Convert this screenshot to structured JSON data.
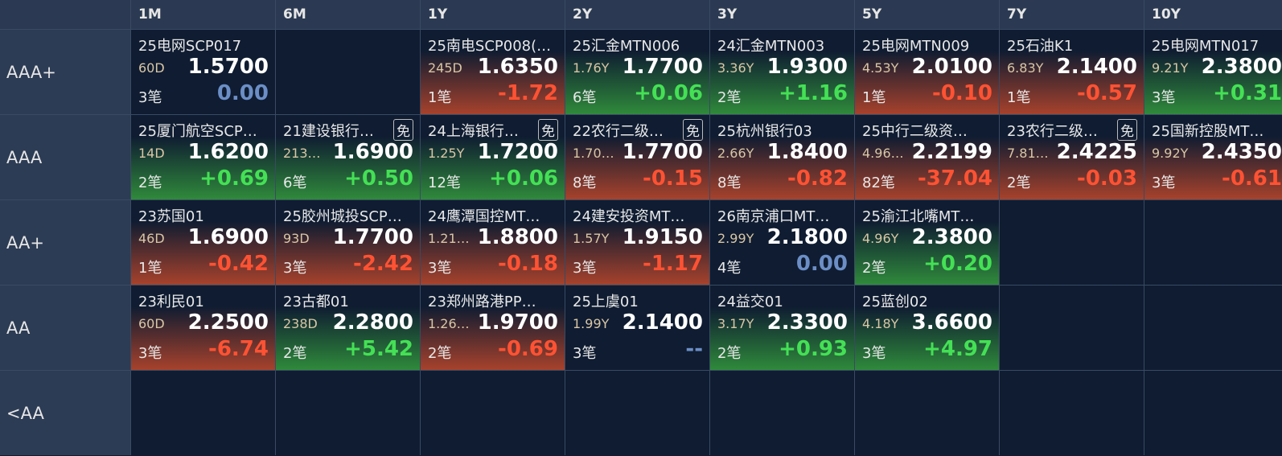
{
  "header": {
    "columns": [
      "1M",
      "6M",
      "1Y",
      "2Y",
      "3Y",
      "5Y",
      "7Y",
      "10Y"
    ]
  },
  "rows": [
    {
      "label": "AAA+",
      "cells": [
        {
          "name": "25电网SCP017",
          "term": "60D",
          "yield": "1.5700",
          "count": "3笔",
          "change": "0.00"
        },
        null,
        {
          "name": "25南电SCP008(…",
          "term": "245D",
          "yield": "1.6350",
          "count": "1笔",
          "change": "-1.72"
        },
        {
          "name": "25汇金MTN006",
          "term": "1.76Y",
          "yield": "1.7700",
          "count": "6笔",
          "change": "+0.06"
        },
        {
          "name": "24汇金MTN003",
          "term": "3.36Y",
          "yield": "1.9300",
          "count": "2笔",
          "change": "+1.16"
        },
        {
          "name": "25电网MTN009",
          "term": "4.53Y",
          "yield": "2.0100",
          "count": "1笔",
          "change": "-0.10"
        },
        {
          "name": "25石油K1",
          "term": "6.83Y",
          "yield": "2.1400",
          "count": "1笔",
          "change": "-0.57"
        },
        {
          "name": "25电网MTN017",
          "term": "9.21Y",
          "yield": "2.3800",
          "count": "3笔",
          "change": "+0.31"
        }
      ]
    },
    {
      "label": "AAA",
      "cells": [
        {
          "name": "25厦门航空SCP…",
          "term": "14D",
          "yield": "1.6200",
          "count": "2笔",
          "change": "+0.69"
        },
        {
          "name": "21建设银行…",
          "badge": "免",
          "term": "213…",
          "yield": "1.6900",
          "count": "6笔",
          "change": "+0.50"
        },
        {
          "name": "24上海银行…",
          "badge": "免",
          "term": "1.25Y",
          "yield": "1.7200",
          "count": "12笔",
          "change": "+0.06"
        },
        {
          "name": "22农行二级…",
          "badge": "免",
          "term": "1.70…",
          "yield": "1.7700",
          "count": "8笔",
          "change": "-0.15"
        },
        {
          "name": "25杭州银行03",
          "term": "2.66Y",
          "yield": "1.8400",
          "count": "8笔",
          "change": "-0.82"
        },
        {
          "name": "25中行二级资…",
          "term": "4.96…",
          "yield": "2.2199",
          "count": "82笔",
          "change": "-37.04"
        },
        {
          "name": "23农行二级…",
          "badge": "免",
          "term": "7.81…",
          "yield": "2.4225",
          "count": "2笔",
          "change": "-0.03"
        },
        {
          "name": "25国新控股MT…",
          "term": "9.92Y",
          "yield": "2.4350",
          "count": "3笔",
          "change": "-0.61"
        }
      ]
    },
    {
      "label": "AA+",
      "cells": [
        {
          "name": "23苏国01",
          "term": "46D",
          "yield": "1.6900",
          "count": "1笔",
          "change": "-0.42"
        },
        {
          "name": "25胶州城投SCP…",
          "term": "93D",
          "yield": "1.7700",
          "count": "3笔",
          "change": "-2.42"
        },
        {
          "name": "24鹰潭国控MT…",
          "term": "1.21…",
          "yield": "1.8800",
          "count": "3笔",
          "change": "-0.18"
        },
        {
          "name": "24建安投资MT…",
          "term": "1.57Y",
          "yield": "1.9150",
          "count": "3笔",
          "change": "-1.17"
        },
        {
          "name": "26南京浦口MT…",
          "term": "2.99Y",
          "yield": "2.1800",
          "count": "4笔",
          "change": "0.00"
        },
        {
          "name": "25渝江北嘴MT…",
          "term": "4.96Y",
          "yield": "2.3800",
          "count": "2笔",
          "change": "+0.20"
        },
        null,
        null
      ]
    },
    {
      "label": "AA",
      "cells": [
        {
          "name": "23利民01",
          "term": "60D",
          "yield": "2.2500",
          "count": "3笔",
          "change": "-6.74"
        },
        {
          "name": "23古都01",
          "term": "238D",
          "yield": "2.2800",
          "count": "2笔",
          "change": "+5.42"
        },
        {
          "name": "23郑州路港PP…",
          "term": "1.26…",
          "yield": "1.9700",
          "count": "2笔",
          "change": "-0.69"
        },
        {
          "name": "25上虞01",
          "term": "1.99Y",
          "yield": "2.1400",
          "count": "3笔",
          "change": "--"
        },
        {
          "name": "24益交01",
          "term": "3.17Y",
          "yield": "2.3300",
          "count": "2笔",
          "change": "+0.93"
        },
        {
          "name": "25蓝创02",
          "term": "4.18Y",
          "yield": "3.6600",
          "count": "3笔",
          "change": "+4.97"
        },
        null,
        null
      ]
    },
    {
      "label": "<AA",
      "cells": [
        null,
        null,
        null,
        null,
        null,
        null,
        null,
        null
      ]
    }
  ]
}
